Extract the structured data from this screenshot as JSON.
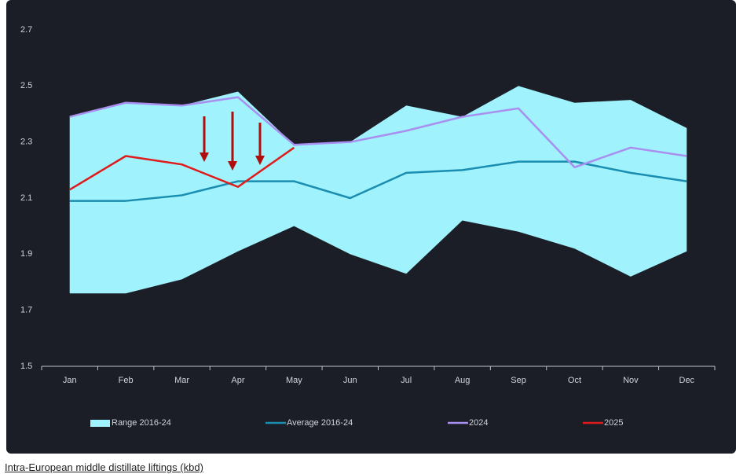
{
  "chart_data": {
    "type": "line",
    "caption": "Intra-European middle distillate liftings (kbd)",
    "categories": [
      "Jan",
      "Feb",
      "Mar",
      "Apr",
      "May",
      "Jun",
      "Jul",
      "Aug",
      "Sep",
      "Oct",
      "Nov",
      "Dec"
    ],
    "ylim": [
      1.5,
      2.7
    ],
    "yticks": [
      1.5,
      1.7,
      1.9,
      2.1,
      2.3,
      2.5,
      2.7
    ],
    "grid": false,
    "legend": "bottom",
    "series": [
      {
        "name": "Range 2016-24",
        "type": "range",
        "color": "#a0f2fc",
        "upper": [
          2.39,
          2.44,
          2.43,
          2.48,
          2.29,
          2.3,
          2.43,
          2.39,
          2.5,
          2.44,
          2.45,
          2.35
        ],
        "lower": [
          1.76,
          1.76,
          1.81,
          1.91,
          2.0,
          1.9,
          1.83,
          2.02,
          1.98,
          1.92,
          1.82,
          1.91
        ]
      },
      {
        "name": "Average 2016-24",
        "color": "#1a8db0",
        "values": [
          2.09,
          2.09,
          2.11,
          2.16,
          2.16,
          2.1,
          2.19,
          2.2,
          2.23,
          2.23,
          2.19,
          2.16
        ]
      },
      {
        "name": "2024",
        "color": "#a98ff0",
        "values": [
          2.39,
          2.44,
          2.43,
          2.46,
          2.29,
          2.3,
          2.34,
          2.39,
          2.42,
          2.21,
          2.28,
          2.25
        ]
      },
      {
        "name": "2025",
        "color": "#e01b1b",
        "values": [
          2.13,
          2.25,
          2.22,
          2.14,
          2.28,
          null,
          null,
          null,
          null,
          null,
          null,
          null
        ]
      }
    ]
  }
}
